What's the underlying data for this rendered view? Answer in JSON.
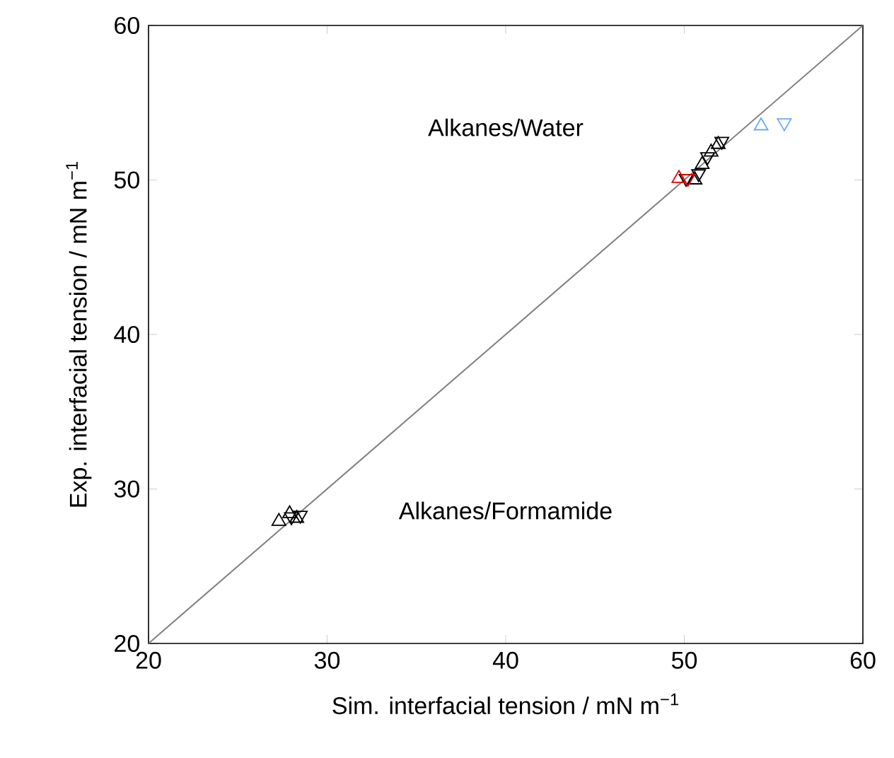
{
  "chart_data": {
    "type": "scatter",
    "xlabel": "Sim. interfacial tension / mN m$^{−1}$",
    "ylabel": "Exp. interfacial tension / mN m$^{−1}$",
    "xlim": [
      20,
      60
    ],
    "ylim": [
      20,
      60
    ],
    "xticks": [
      20,
      30,
      40,
      50,
      60
    ],
    "yticks": [
      20,
      30,
      40,
      50,
      60
    ],
    "grid": false,
    "annotations": [
      "Alkanes/Water",
      "Alkanes/Formamide"
    ],
    "series": [
      {
        "color": "#000000",
        "marker": "triangle",
        "x": [
          27.3,
          27.9,
          28.3,
          50.6,
          51.0,
          51.5,
          51.9
        ],
        "values": [
          27.9,
          28.4,
          28.1,
          50.0,
          51.0,
          51.8,
          52.3
        ]
      },
      {
        "color": "#000000",
        "marker": "triangle down",
        "x": [
          28.0,
          28.5,
          50.1,
          50.8,
          51.3,
          52.1
        ],
        "values": [
          28.2,
          28.3,
          50.1,
          50.4,
          51.5,
          52.5
        ]
      },
      {
        "color": "#e00000",
        "marker": "triangle",
        "x": [
          49.7
        ],
        "values": [
          50.1
        ]
      },
      {
        "color": "#e00000",
        "marker": "triangle down",
        "x": [
          50.2
        ],
        "values": [
          50.1
        ]
      },
      {
        "color": "#6aaaf0",
        "marker": "triangle",
        "x": [
          54.3
        ],
        "values": [
          53.5
        ]
      },
      {
        "color": "#6aaaf0",
        "marker": "triangle down",
        "x": [
          55.6
        ],
        "values": [
          53.7
        ]
      },
      {
        "type": "line",
        "color": "#808080",
        "marker": "none",
        "x": [
          20,
          60
        ],
        "values": [
          20,
          60
        ]
      }
    ]
  }
}
